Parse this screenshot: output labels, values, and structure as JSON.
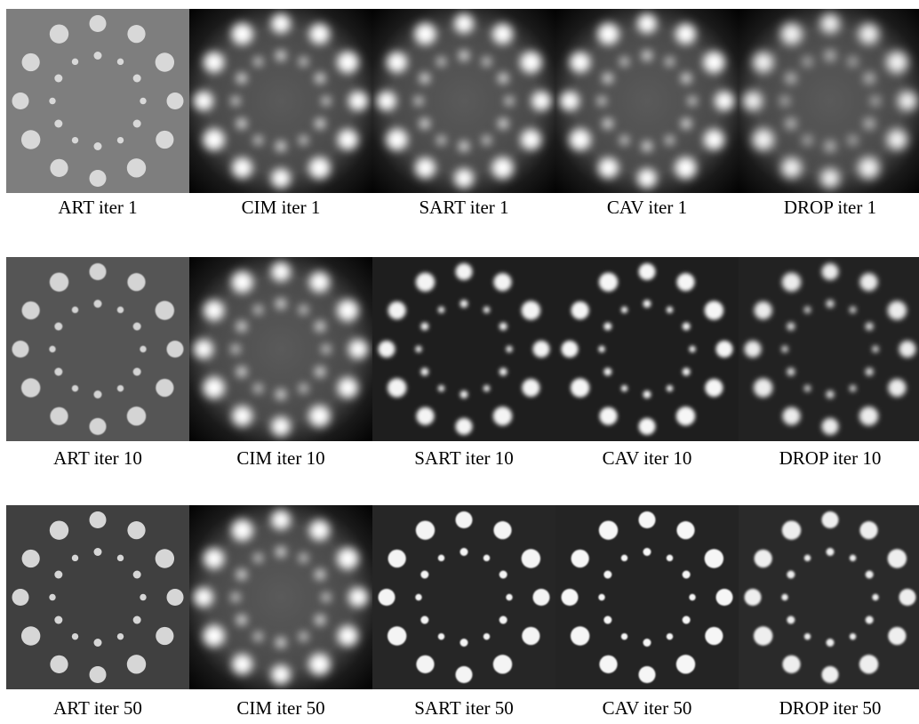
{
  "rows": [
    {
      "panels": [
        {
          "caption": "ART iter 1"
        },
        {
          "caption": "CIM iter 1"
        },
        {
          "caption": "SART iter 1"
        },
        {
          "caption": "CAV iter 1"
        },
        {
          "caption": "DROP iter 1"
        }
      ]
    },
    {
      "panels": [
        {
          "caption": "ART iter 10"
        },
        {
          "caption": "CIM iter 10"
        },
        {
          "caption": "SART iter 10"
        },
        {
          "caption": "CAV iter 10"
        },
        {
          "caption": "DROP iter 10"
        }
      ]
    },
    {
      "panels": [
        {
          "caption": "ART iter 50"
        },
        {
          "caption": "CIM iter 50"
        },
        {
          "caption": "SART iter 50"
        },
        {
          "caption": "CAV iter 50"
        },
        {
          "caption": "DROP iter 50"
        }
      ]
    }
  ]
}
